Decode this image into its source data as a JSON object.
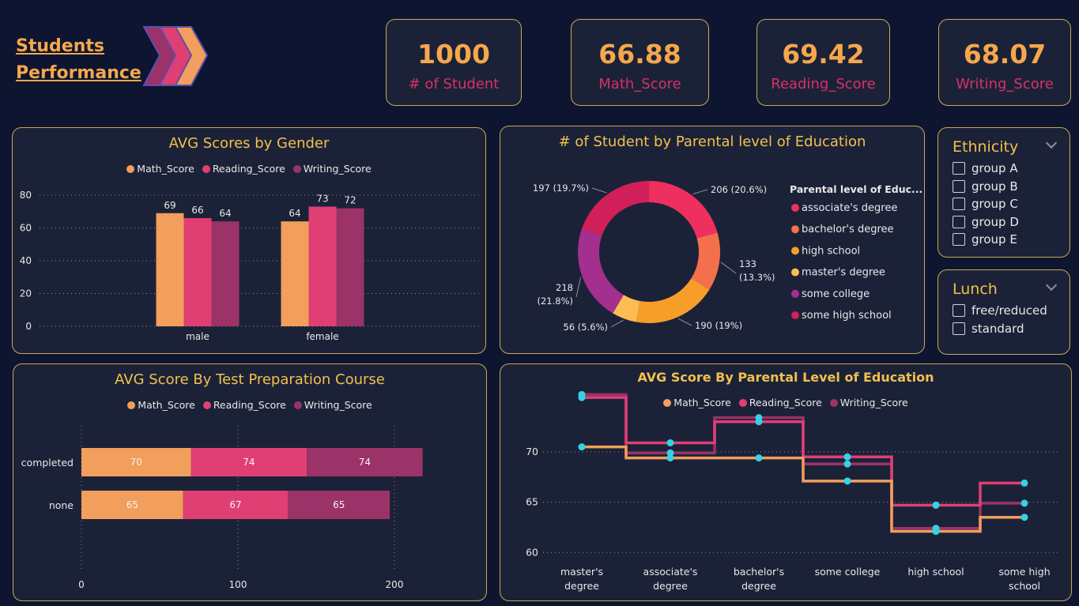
{
  "header": {
    "title_line1": "Students",
    "title_line2": "Performance"
  },
  "kpis": [
    {
      "value": "1000",
      "label": "# of Student"
    },
    {
      "value": "66.88",
      "label": "Math_Score"
    },
    {
      "value": "69.42",
      "label": "Reading_Score"
    },
    {
      "value": "68.07",
      "label": "Writing_Score"
    }
  ],
  "colors": {
    "math": "#f29e5c",
    "reading": "#e03f74",
    "writing": "#9b3268",
    "title": "#f2c04c"
  },
  "legend_series": [
    "Math_Score",
    "Reading_Score",
    "Writing_Score"
  ],
  "slicers": {
    "ethnicity": {
      "title": "Ethnicity",
      "options": [
        "group A",
        "group B",
        "group C",
        "group D",
        "group E"
      ]
    },
    "lunch": {
      "title": "Lunch",
      "options": [
        "free/reduced",
        "standard"
      ]
    }
  },
  "chart_data": [
    {
      "type": "bar",
      "title": "AVG Scores by Gender",
      "categories": [
        "male",
        "female"
      ],
      "series": [
        {
          "name": "Math_Score",
          "values": [
            69,
            64
          ]
        },
        {
          "name": "Reading_Score",
          "values": [
            66,
            73
          ]
        },
        {
          "name": "Writing_Score",
          "values": [
            64,
            72
          ]
        }
      ],
      "yticks": [
        "0",
        "20",
        "40",
        "60",
        "80"
      ],
      "ylim": [
        0,
        80
      ],
      "grid": true,
      "legend": "top"
    },
    {
      "type": "pie",
      "title": "# of Student by Parental level of Education",
      "legend_title": "Parental level of Educ...",
      "slices": [
        {
          "label": "associate's degree",
          "value": 206,
          "data_label": "206 (20.6%)",
          "color": "#ef2f5e"
        },
        {
          "label": "bachelor's degree",
          "value": 133,
          "data_label": "133 (13.3%)",
          "color": "#f4704c"
        },
        {
          "label": "high school",
          "value": 190,
          "data_label": "190 (19%)",
          "color": "#f79e28"
        },
        {
          "label": "master's degree",
          "value": 56,
          "data_label": "56 (5.6%)",
          "color": "#fbbd52"
        },
        {
          "label": "some college",
          "value": 218,
          "data_label": "218 (21.8%)",
          "color": "#a32f8f"
        },
        {
          "label": "some high school",
          "value": 197,
          "data_label": "197 (19.7%)",
          "color": "#d11f5a"
        }
      ],
      "legend": "right"
    },
    {
      "type": "bar",
      "orientation": "horizontal-stacked",
      "title": "AVG Score By Test Preparation Course",
      "categories": [
        "completed",
        "none"
      ],
      "series": [
        {
          "name": "Math_Score",
          "values": [
            70,
            65
          ]
        },
        {
          "name": "Reading_Score",
          "values": [
            74,
            67
          ]
        },
        {
          "name": "Writing_Score",
          "values": [
            74,
            65
          ]
        }
      ],
      "xticks": [
        "0",
        "100",
        "200"
      ],
      "xlim": [
        0,
        220
      ],
      "legend": "top"
    },
    {
      "type": "line",
      "title": "AVG Score By Parental Level of Education",
      "categories": [
        "master's degree",
        "associate's degree",
        "bachelor's degree",
        "some college",
        "high school",
        "some high school"
      ],
      "series": [
        {
          "name": "Math_Score",
          "values": [
            70.5,
            69.4,
            69.4,
            67.1,
            62.1,
            63.5
          ]
        },
        {
          "name": "Reading_Score",
          "values": [
            75.4,
            70.9,
            73.0,
            69.5,
            64.7,
            66.9
          ]
        },
        {
          "name": "Writing_Score",
          "values": [
            75.7,
            69.9,
            73.4,
            68.8,
            62.4,
            64.9
          ]
        }
      ],
      "step_values_note": "",
      "yticks": [
        "60",
        "65",
        "70"
      ],
      "ylim": [
        59,
        74
      ],
      "grid": true,
      "legend": "top"
    }
  ]
}
